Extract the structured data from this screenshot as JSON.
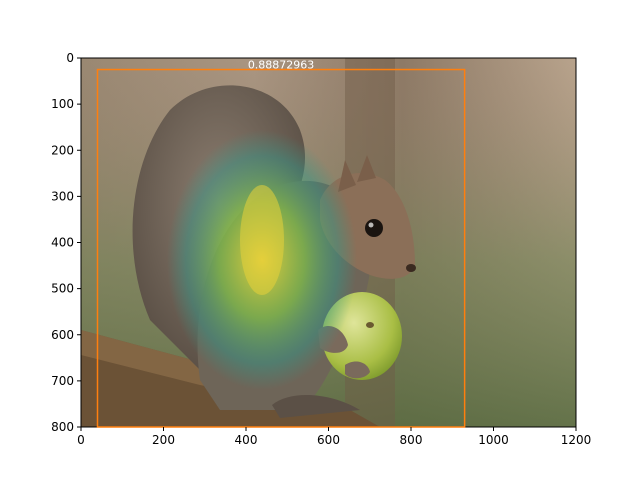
{
  "figure": {
    "image_description_free": true
  },
  "axes": {
    "x_ticks": [
      0,
      200,
      400,
      600,
      800,
      1000,
      1200
    ],
    "y_ticks": [
      0,
      100,
      200,
      300,
      400,
      500,
      600,
      700,
      800
    ],
    "xlim": [
      0,
      1200
    ],
    "ylim": [
      800,
      0
    ]
  },
  "detection": {
    "score_label": "0.88872963",
    "box": {
      "x0": 40,
      "y0": 25,
      "x1": 930,
      "y1": 800
    },
    "box_color": "#ff7f0e",
    "label_color": "#ffffff"
  },
  "colors": {
    "axis": "#000000",
    "heatmap_inner": "#e8d23a",
    "heatmap_mid": "#3aa86a"
  }
}
